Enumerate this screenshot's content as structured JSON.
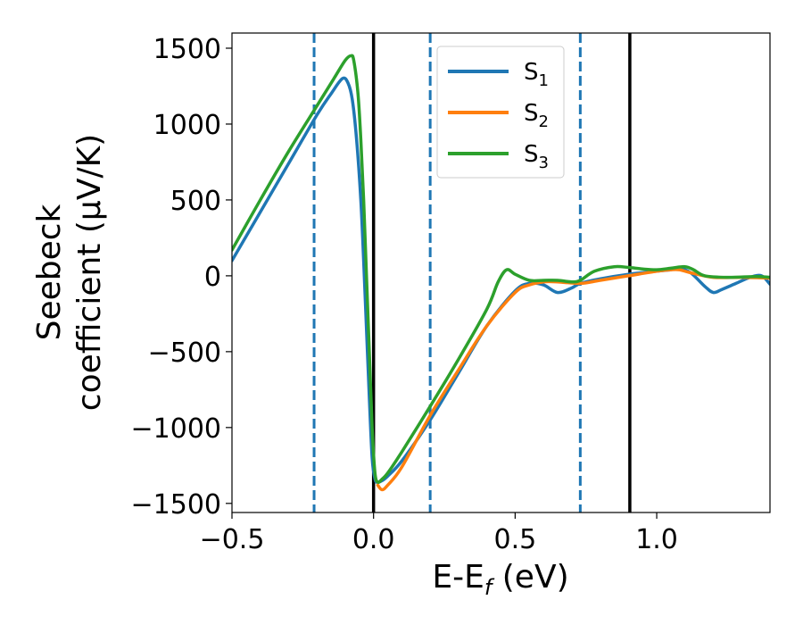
{
  "chart_data": {
    "type": "line",
    "xlabel_main": "E-E",
    "xlabel_sub": "f",
    "xlabel_unit": " (eV)",
    "ylabel_line1": "Seebeck",
    "ylabel_line2": "coefficient  (μV/K)",
    "xlim": [
      -0.5,
      1.4
    ],
    "ylim": [
      -1560,
      1600
    ],
    "xticks": [
      {
        "value": -0.5,
        "label": "−0.5"
      },
      {
        "value": 0.0,
        "label": "0.0"
      },
      {
        "value": 0.5,
        "label": "0.5"
      },
      {
        "value": 1.0,
        "label": "1.0"
      }
    ],
    "yticks": [
      {
        "value": 1500,
        "label": "1500"
      },
      {
        "value": 1000,
        "label": "1000"
      },
      {
        "value": 500,
        "label": "500"
      },
      {
        "value": 0,
        "label": "0"
      },
      {
        "value": -500,
        "label": "−500"
      },
      {
        "value": -1000,
        "label": "−1000"
      },
      {
        "value": -1500,
        "label": "−1500"
      }
    ],
    "vlines": [
      {
        "x": -0.21,
        "style": "dashed",
        "color": "#1f77b4"
      },
      {
        "x": 0.0,
        "style": "solid",
        "color": "#000000"
      },
      {
        "x": 0.2,
        "style": "dashed",
        "color": "#1f77b4"
      },
      {
        "x": 0.73,
        "style": "dashed",
        "color": "#1f77b4"
      },
      {
        "x": 0.905,
        "style": "solid",
        "color": "#000000"
      }
    ],
    "legend_position": "top-center",
    "series": [
      {
        "name": "S",
        "sub": "1",
        "color": "#1f77b4",
        "points": [
          [
            -0.5,
            100
          ],
          [
            -0.4,
            420
          ],
          [
            -0.3,
            740
          ],
          [
            -0.2,
            1060
          ],
          [
            -0.15,
            1200
          ],
          [
            -0.11,
            1300
          ],
          [
            -0.09,
            1270
          ],
          [
            -0.075,
            1160
          ],
          [
            -0.06,
            900
          ],
          [
            -0.045,
            500
          ],
          [
            -0.035,
            100
          ],
          [
            -0.025,
            -350
          ],
          [
            -0.015,
            -800
          ],
          [
            -0.005,
            -1200
          ],
          [
            0.005,
            -1340
          ],
          [
            0.015,
            -1360
          ],
          [
            0.03,
            -1350
          ],
          [
            0.05,
            -1320
          ],
          [
            0.1,
            -1220
          ],
          [
            0.2,
            -950
          ],
          [
            0.3,
            -640
          ],
          [
            0.4,
            -330
          ],
          [
            0.5,
            -100
          ],
          [
            0.55,
            -50
          ],
          [
            0.6,
            -60
          ],
          [
            0.65,
            -110
          ],
          [
            0.7,
            -80
          ],
          [
            0.73,
            -50
          ],
          [
            0.8,
            -20
          ],
          [
            0.9,
            10
          ],
          [
            1.0,
            30
          ],
          [
            1.05,
            40
          ],
          [
            1.08,
            50
          ],
          [
            1.12,
            20
          ],
          [
            1.17,
            -70
          ],
          [
            1.2,
            -110
          ],
          [
            1.23,
            -90
          ],
          [
            1.28,
            -50
          ],
          [
            1.33,
            -10
          ],
          [
            1.37,
            0
          ],
          [
            1.4,
            -55
          ]
        ]
      },
      {
        "name": "S",
        "sub": "2",
        "color": "#ff7f0e",
        "points": [
          [
            0.015,
            -1380
          ],
          [
            0.03,
            -1410
          ],
          [
            0.05,
            -1380
          ],
          [
            0.1,
            -1260
          ],
          [
            0.2,
            -920
          ],
          [
            0.3,
            -620
          ],
          [
            0.4,
            -330
          ],
          [
            0.5,
            -110
          ],
          [
            0.55,
            -60
          ],
          [
            0.6,
            -40
          ],
          [
            0.65,
            -40
          ],
          [
            0.73,
            -50
          ],
          [
            0.8,
            -30
          ],
          [
            0.9,
            0
          ],
          [
            1.0,
            30
          ],
          [
            1.05,
            40
          ],
          [
            1.08,
            40
          ],
          [
            1.12,
            20
          ],
          [
            1.2,
            -10
          ],
          [
            1.3,
            -10
          ],
          [
            1.4,
            -15
          ]
        ]
      },
      {
        "name": "S",
        "sub": "3",
        "color": "#2ca02c",
        "points": [
          [
            -0.5,
            170
          ],
          [
            -0.4,
            500
          ],
          [
            -0.3,
            820
          ],
          [
            -0.2,
            1120
          ],
          [
            -0.14,
            1300
          ],
          [
            -0.1,
            1420
          ],
          [
            -0.08,
            1450
          ],
          [
            -0.07,
            1420
          ],
          [
            -0.055,
            1200
          ],
          [
            -0.045,
            900
          ],
          [
            -0.035,
            500
          ],
          [
            -0.025,
            0
          ],
          [
            -0.015,
            -500
          ],
          [
            -0.005,
            -1000
          ],
          [
            0.005,
            -1300
          ],
          [
            0.015,
            -1360
          ],
          [
            0.03,
            -1340
          ],
          [
            0.05,
            -1300
          ],
          [
            0.1,
            -1160
          ],
          [
            0.2,
            -860
          ],
          [
            0.3,
            -550
          ],
          [
            0.4,
            -220
          ],
          [
            0.44,
            -40
          ],
          [
            0.47,
            40
          ],
          [
            0.5,
            10
          ],
          [
            0.55,
            -30
          ],
          [
            0.6,
            -30
          ],
          [
            0.65,
            -30
          ],
          [
            0.7,
            -40
          ],
          [
            0.73,
            -30
          ],
          [
            0.78,
            30
          ],
          [
            0.85,
            60
          ],
          [
            0.9,
            55
          ],
          [
            0.95,
            45
          ],
          [
            1.0,
            40
          ],
          [
            1.05,
            50
          ],
          [
            1.1,
            60
          ],
          [
            1.13,
            40
          ],
          [
            1.17,
            0
          ],
          [
            1.25,
            -10
          ],
          [
            1.35,
            -5
          ],
          [
            1.4,
            -10
          ]
        ]
      }
    ]
  }
}
